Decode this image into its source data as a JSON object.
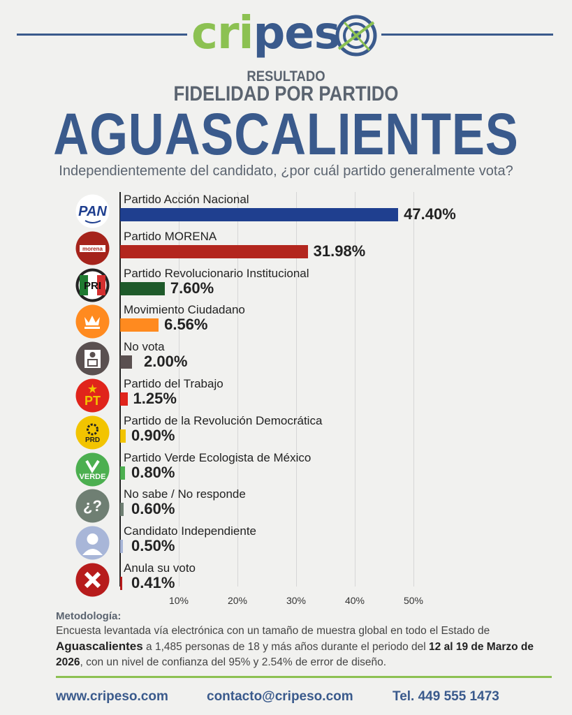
{
  "brand": {
    "logo_text": "cripes",
    "accent_green": "#8cc152",
    "accent_blue": "#3a5a8c"
  },
  "header": {
    "kicker": "RESULTADO",
    "title": "FIDELIDAD POR PARTIDO",
    "state": "AGUASCALIENTES",
    "question": "Independientemente del candidato, ¿por cuál partido generalmente vota?"
  },
  "chart_data": {
    "type": "bar",
    "orientation": "horizontal",
    "xlim": [
      0,
      50
    ],
    "x_ticks": [
      "10%",
      "20%",
      "30%",
      "40%",
      "50%"
    ],
    "grid": true,
    "categories": [
      "Partido Acción Nacional",
      "Partido MORENA",
      "Partido Revolucionario Institucional",
      "Movimiento Ciudadano",
      "No vota",
      "Partido del Trabajo",
      "Partido de la Revolución Democrática",
      "Partido Verde Ecologista de México",
      "No sabe / No responde",
      "Candidato Independiente",
      "Anula su voto"
    ],
    "values": [
      47.4,
      31.98,
      7.6,
      6.56,
      2.0,
      1.25,
      0.9,
      0.8,
      0.6,
      0.5,
      0.41
    ],
    "value_labels": [
      "47.40%",
      "31.98%",
      "7.60%",
      "6.56%",
      "2.00%",
      "1.25%",
      "0.90%",
      "0.80%",
      "0.60%",
      "0.50%",
      "0.41%"
    ],
    "colors": [
      "#1f3f8f",
      "#b3261e",
      "#1e5a2a",
      "#ff8a1f",
      "#5a5050",
      "#e0241b",
      "#f2c400",
      "#4caf50",
      "#6f7f73",
      "#a8b6d8",
      "#b71c1c"
    ],
    "icons": [
      "pan-logo-icon",
      "morena-logo-icon",
      "pri-logo-icon",
      "mc-logo-icon",
      "ballot-box-icon",
      "pt-logo-icon",
      "prd-logo-icon",
      "verde-logo-icon",
      "question-icon",
      "person-icon",
      "cross-icon"
    ],
    "icon_texts": [
      "PAN",
      "morena",
      "PRI",
      "",
      "",
      "PT",
      "PRD",
      "VERDE",
      "¿?",
      "",
      ""
    ]
  },
  "methodology": {
    "title": "Metodología:",
    "p1": "Encuesta levantada vía electrónica con un tamaño de muestra global en todo el Estado de",
    "state": "Aguascalientes",
    "p2": " a 1,485 personas de 18 y más años durante el periodo del ",
    "dates1": "12 al 19 de",
    "dates2": "Marzo de 2026",
    "p3": ", con un nivel de confianza del 95% y 2.54% de error de diseño."
  },
  "footer": {
    "web": "www.cripeso.com",
    "email": "contacto@cripeso.com",
    "phone": "Tel. 449 555 1473"
  }
}
